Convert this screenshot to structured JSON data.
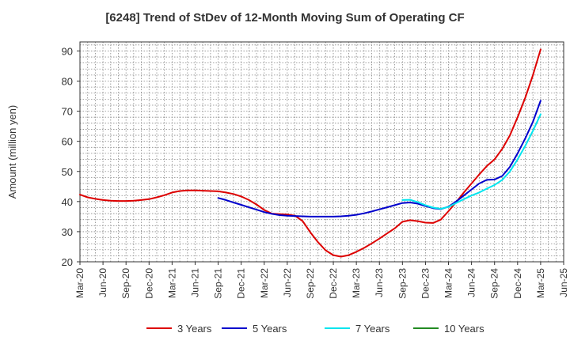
{
  "chart_data": {
    "type": "line",
    "title": "[6248]  Trend of StDev of 12-Month Moving Sum of Operating CF",
    "ylabel": "Amount (million yen)",
    "xlabel": "",
    "ylim": [
      20,
      93
    ],
    "yticks": [
      20,
      30,
      40,
      50,
      60,
      70,
      80,
      90
    ],
    "xlim": [
      "2020-03",
      "2025-06"
    ],
    "xticks": [
      "Mar-20",
      "Jun-20",
      "Sep-20",
      "Dec-20",
      "Mar-21",
      "Jun-21",
      "Sep-21",
      "Dec-21",
      "Mar-22",
      "Jun-22",
      "Sep-22",
      "Dec-22",
      "Mar-23",
      "Jun-23",
      "Sep-23",
      "Dec-23",
      "Mar-24",
      "Jun-24",
      "Sep-24",
      "Dec-24",
      "Mar-25",
      "Jun-25"
    ],
    "grid": true,
    "legend_position": "bottom",
    "series": [
      {
        "name": "3 Years",
        "color": "#dd0000",
        "x": [
          "2020-03",
          "2020-04",
          "2020-05",
          "2020-06",
          "2020-07",
          "2020-08",
          "2020-09",
          "2020-10",
          "2020-11",
          "2020-12",
          "2021-01",
          "2021-02",
          "2021-03",
          "2021-04",
          "2021-05",
          "2021-06",
          "2021-07",
          "2021-08",
          "2021-09",
          "2021-10",
          "2021-11",
          "2021-12",
          "2022-01",
          "2022-02",
          "2022-03",
          "2022-04",
          "2022-05",
          "2022-06",
          "2022-07",
          "2022-08",
          "2022-09",
          "2022-10",
          "2022-11",
          "2022-12",
          "2023-01",
          "2023-02",
          "2023-03",
          "2023-04",
          "2023-05",
          "2023-06",
          "2023-07",
          "2023-08",
          "2023-09",
          "2023-10",
          "2023-11",
          "2023-12",
          "2024-01",
          "2024-02",
          "2024-03",
          "2024-04",
          "2024-05",
          "2024-06",
          "2024-07",
          "2024-08",
          "2024-09",
          "2024-10",
          "2024-11",
          "2024-12",
          "2025-01",
          "2025-02",
          "2025-03"
        ],
        "y": [
          42.3,
          41.4,
          40.9,
          40.5,
          40.3,
          40.2,
          40.2,
          40.3,
          40.5,
          40.8,
          41.4,
          42.1,
          43.0,
          43.5,
          43.7,
          43.7,
          43.6,
          43.5,
          43.4,
          43.0,
          42.5,
          41.7,
          40.5,
          39.0,
          37.2,
          36.0,
          35.8,
          35.7,
          35.3,
          33.5,
          29.8,
          26.5,
          23.8,
          22.2,
          21.7,
          22.2,
          23.3,
          24.6,
          26.1,
          27.7,
          29.4,
          31.1,
          33.3,
          33.8,
          33.5,
          33.0,
          32.9,
          34.0,
          36.8,
          39.8,
          43.0,
          46.0,
          49.0,
          51.8,
          54.0,
          57.5,
          62.0,
          68.0,
          74.5,
          82.0,
          90.5
        ]
      },
      {
        "name": "5 Years",
        "color": "#0000cc",
        "x": [
          "2021-09",
          "2021-10",
          "2021-11",
          "2021-12",
          "2022-01",
          "2022-02",
          "2022-03",
          "2022-04",
          "2022-05",
          "2022-06",
          "2022-07",
          "2022-08",
          "2022-09",
          "2022-10",
          "2022-11",
          "2022-12",
          "2023-01",
          "2023-02",
          "2023-03",
          "2023-04",
          "2023-05",
          "2023-06",
          "2023-07",
          "2023-08",
          "2023-09",
          "2023-10",
          "2023-11",
          "2023-12",
          "2024-01",
          "2024-02",
          "2024-03",
          "2024-04",
          "2024-05",
          "2024-06",
          "2024-07",
          "2024-08",
          "2024-09",
          "2024-10",
          "2024-11",
          "2024-12",
          "2025-01",
          "2025-02",
          "2025-03"
        ],
        "y": [
          41.2,
          40.5,
          39.7,
          38.9,
          38.1,
          37.3,
          36.5,
          35.9,
          35.5,
          35.3,
          35.2,
          35.1,
          35.0,
          35.0,
          35.0,
          35.0,
          35.1,
          35.3,
          35.6,
          36.1,
          36.7,
          37.4,
          38.1,
          38.8,
          39.5,
          39.7,
          39.3,
          38.5,
          37.8,
          37.5,
          38.3,
          40.0,
          42.0,
          44.0,
          46.0,
          47.2,
          47.3,
          48.5,
          51.5,
          56.0,
          61.0,
          66.5,
          73.5
        ]
      },
      {
        "name": "7 Years",
        "color": "#00e5ee",
        "x": [
          "2023-09",
          "2023-10",
          "2023-11",
          "2023-12",
          "2024-01",
          "2024-02",
          "2024-03",
          "2024-04",
          "2024-05",
          "2024-06",
          "2024-07",
          "2024-08",
          "2024-09",
          "2024-10",
          "2024-11",
          "2024-12",
          "2025-01",
          "2025-02",
          "2025-03"
        ],
        "y": [
          40.5,
          40.6,
          39.8,
          38.8,
          38.0,
          37.6,
          38.2,
          39.5,
          40.8,
          42.0,
          43.0,
          44.3,
          45.5,
          47.2,
          50.0,
          54.0,
          58.5,
          63.5,
          69.0
        ]
      },
      {
        "name": "10 Years",
        "color": "#228b22",
        "x": [],
        "y": []
      }
    ]
  }
}
